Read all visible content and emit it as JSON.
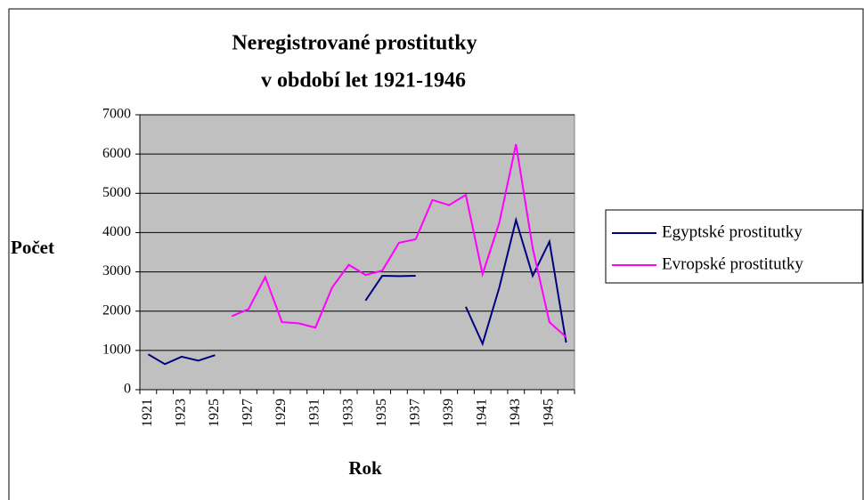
{
  "chart_data": {
    "type": "line",
    "title": [
      "Neregistrované prostitutky",
      "v období let 1921-1946"
    ],
    "y_label": "Počet",
    "x_label": "Rok",
    "categories": [
      "1921",
      null,
      "1923",
      null,
      "1925",
      null,
      "1927",
      null,
      "1929",
      null,
      "1931",
      null,
      "1933",
      null,
      "1935",
      null,
      "1937",
      null,
      "1939",
      null,
      "1941",
      null,
      "1943",
      null,
      "1945",
      null
    ],
    "series": [
      {
        "name": "Egyptské prostitutky",
        "color": "#000080",
        "values": [
          900,
          650,
          840,
          740,
          880,
          null,
          null,
          null,
          null,
          null,
          null,
          null,
          null,
          2270,
          2900,
          2890,
          2900,
          null,
          null,
          2110,
          1170,
          2600,
          4320,
          2900,
          3770,
          1200
        ]
      },
      {
        "name": "Evropské prostitutky",
        "color": "#ff00ff",
        "values": [
          null,
          null,
          null,
          null,
          null,
          1870,
          2050,
          2870,
          1720,
          1690,
          1580,
          2600,
          3180,
          2920,
          3030,
          3740,
          3830,
          4830,
          4700,
          4960,
          2940,
          4250,
          6250,
          3600,
          1720,
          1340
        ]
      }
    ],
    "ylim": [
      0,
      7000
    ],
    "yticks": [
      0,
      1000,
      2000,
      3000,
      4000,
      5000,
      6000,
      7000
    ],
    "grid": true,
    "plot_background": "#c0c0c0",
    "legend": "right"
  }
}
